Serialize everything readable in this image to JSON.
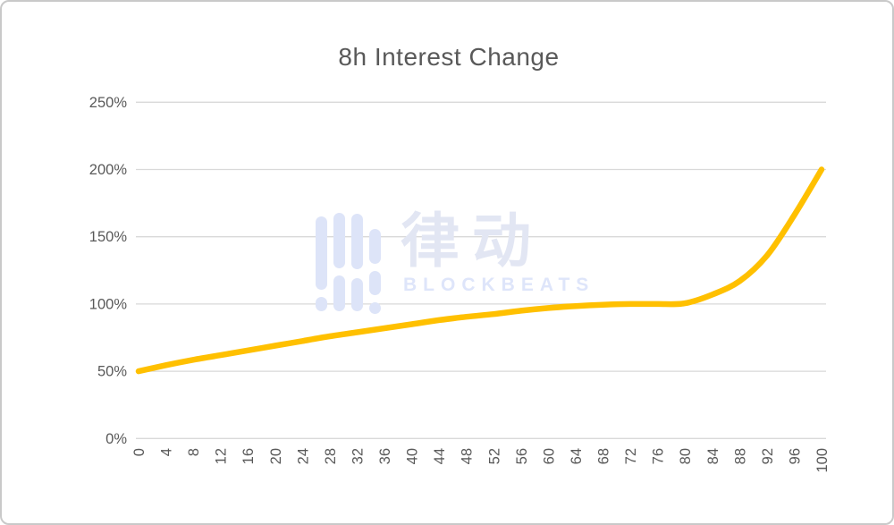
{
  "page": {
    "title": "8h Interest Change"
  },
  "watermark": {
    "cn": "律动",
    "en": "BLOCKBEATS",
    "logo_color": "#dde4f8",
    "cn_color": "#e2e6f3",
    "en_color": "#dee5fa"
  },
  "style": {
    "line_color": "#FFC000",
    "grid_color": "#D9D9D9",
    "label_color": "#595959",
    "border_color": "#C9C9C9",
    "background_color": "#FFFFFF"
  },
  "chart_data": {
    "type": "line",
    "title": "8h Interest Change",
    "xlabel": "",
    "ylabel": "",
    "x": [
      0,
      4,
      8,
      12,
      16,
      20,
      24,
      28,
      32,
      36,
      40,
      44,
      48,
      52,
      56,
      60,
      64,
      68,
      72,
      76,
      80,
      84,
      88,
      92,
      96,
      100
    ],
    "values": [
      50,
      54.5,
      58.5,
      62,
      65.5,
      69,
      72.5,
      76,
      79,
      82,
      85,
      88,
      90.5,
      92.5,
      95,
      97,
      98.5,
      99.5,
      100,
      100,
      100.5,
      107,
      117,
      136,
      166,
      200
    ],
    "value_unit": "%",
    "ylim": [
      0,
      250
    ],
    "y_ticks": [
      0,
      50,
      100,
      150,
      200,
      250
    ],
    "y_tick_labels": [
      "0%",
      "50%",
      "100%",
      "150%",
      "200%",
      "250%"
    ],
    "x_tick_labels": [
      "0",
      "4",
      "8",
      "12",
      "16",
      "20",
      "24",
      "28",
      "32",
      "36",
      "40",
      "44",
      "48",
      "52",
      "56",
      "60",
      "64",
      "68",
      "72",
      "76",
      "80",
      "84",
      "88",
      "92",
      "96",
      "100"
    ],
    "grid": true,
    "legend": false,
    "x_label_rotation_deg": -90
  }
}
